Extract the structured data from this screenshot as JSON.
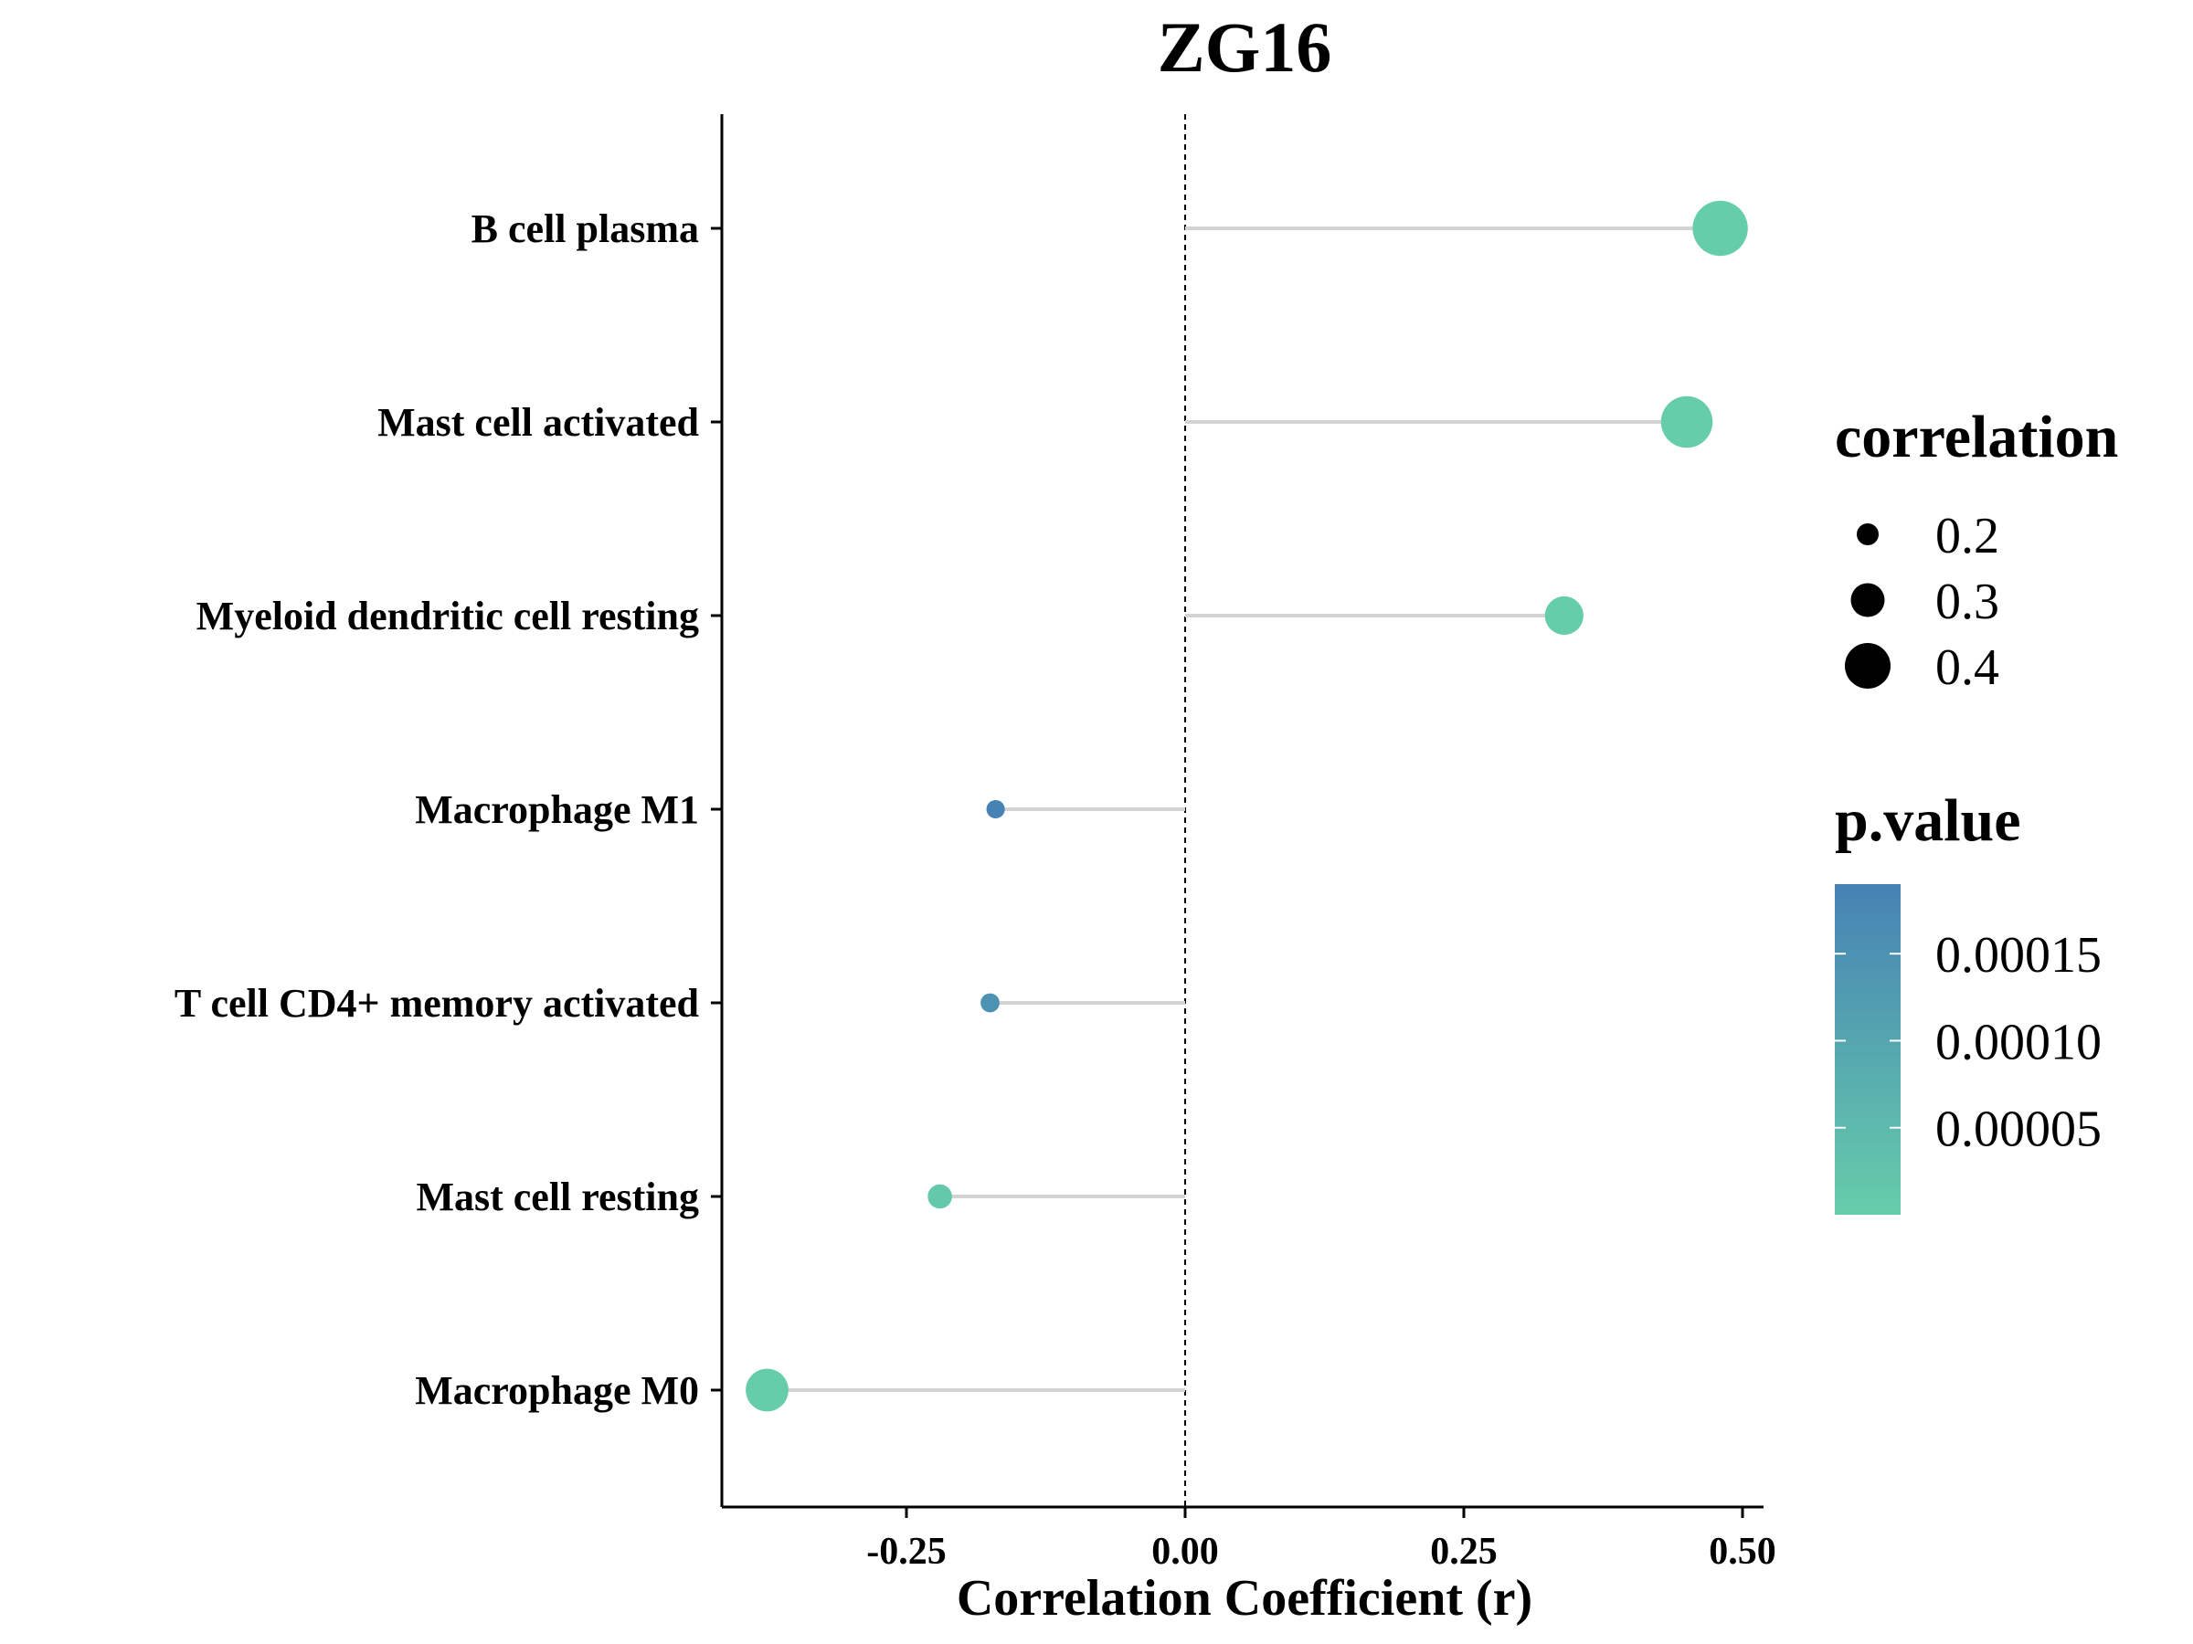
{
  "chart_data": {
    "type": "scatter",
    "subtype": "lollipop",
    "title": "ZG16",
    "xlabel": "Correlation Coefficient (r)",
    "ylabel": "",
    "xlim": [
      -0.42,
      0.52
    ],
    "x_ticks": [
      -0.25,
      0.0,
      0.25,
      0.5
    ],
    "x_tick_labels": [
      "-0.25",
      "0.00",
      "0.25",
      "0.50"
    ],
    "reference_line_x": 0,
    "categories": [
      "B cell plasma",
      "Mast cell activated",
      "Myeloid dendritic cell resting",
      "Macrophage M1",
      "T cell CD4+ memory activated",
      "Mast cell resting",
      "Macrophage M0"
    ],
    "points": [
      {
        "category": "B cell plasma",
        "r": 0.48,
        "p_value": 0.0
      },
      {
        "category": "Mast cell activated",
        "r": 0.45,
        "p_value": 0.0
      },
      {
        "category": "Myeloid dendritic cell resting",
        "r": 0.34,
        "p_value": 0.0
      },
      {
        "category": "Macrophage M1",
        "r": -0.17,
        "p_value": 0.00019
      },
      {
        "category": "T cell CD4+ memory activated",
        "r": -0.175,
        "p_value": 0.00015
      },
      {
        "category": "Mast cell resting",
        "r": -0.22,
        "p_value": 1e-05
      },
      {
        "category": "Macrophage M0",
        "r": -0.375,
        "p_value": 0.0
      }
    ],
    "size_legend": {
      "title": "correlation",
      "values": [
        0.2,
        0.3,
        0.4
      ],
      "labels": [
        "0.2",
        "0.3",
        "0.4"
      ]
    },
    "color_legend": {
      "title": "p.value",
      "range": [
        0.0,
        0.00019
      ],
      "ticks": [
        0.00015,
        0.0001,
        5e-05
      ],
      "tick_labels": [
        "0.00015",
        "0.00010",
        "0.00005"
      ],
      "low_color": "#66CDAA",
      "high_color": "#4682B4"
    },
    "grid": false,
    "legend_position": "right",
    "colors": {
      "segment": "#D3D3D3",
      "axis": "#000000",
      "reference_line": "#000000"
    }
  }
}
